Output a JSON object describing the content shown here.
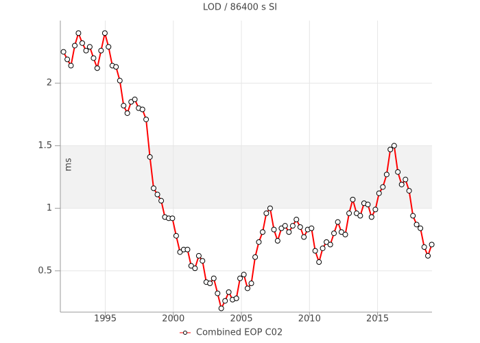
{
  "chart_data": {
    "type": "line",
    "title": "LOD / 86400 s SI",
    "y_label": "ms",
    "x": [
      1991.93,
      1992.21,
      1992.48,
      1992.76,
      1993.03,
      1993.31,
      1993.59,
      1993.86,
      1994.14,
      1994.41,
      1994.69,
      1994.97,
      1995.24,
      1995.52,
      1995.79,
      1996.07,
      1996.35,
      1996.62,
      1996.9,
      1997.17,
      1997.45,
      1997.73,
      1998.0,
      1998.28,
      1998.55,
      1998.83,
      1999.11,
      1999.38,
      1999.66,
      1999.93,
      2000.21,
      2000.49,
      2000.76,
      2001.04,
      2001.31,
      2001.59,
      2001.87,
      2002.14,
      2002.42,
      2002.69,
      2002.97,
      2003.25,
      2003.52,
      2003.8,
      2004.07,
      2004.35,
      2004.63,
      2004.9,
      2005.18,
      2005.45,
      2005.73,
      2006.01,
      2006.28,
      2006.56,
      2006.83,
      2007.11,
      2007.39,
      2007.66,
      2007.94,
      2008.21,
      2008.49,
      2008.77,
      2009.04,
      2009.32,
      2009.59,
      2009.87,
      2010.15,
      2010.42,
      2010.7,
      2010.97,
      2011.25,
      2011.53,
      2011.8,
      2012.08,
      2012.35,
      2012.63,
      2012.91,
      2013.18,
      2013.46,
      2013.73,
      2014.01,
      2014.29,
      2014.56,
      2014.84,
      2015.11,
      2015.39,
      2015.67,
      2015.94,
      2016.22,
      2016.49,
      2016.77,
      2017.05,
      2017.32,
      2017.6,
      2017.87,
      2018.15,
      2018.43,
      2018.7,
      2018.98
    ],
    "series": [
      {
        "name": "Combined EOP C02",
        "color": "#ff0000",
        "values": [
          2.25,
          2.19,
          2.14,
          2.3,
          2.4,
          2.32,
          2.26,
          2.29,
          2.2,
          2.12,
          2.26,
          2.4,
          2.29,
          2.14,
          2.13,
          2.02,
          1.82,
          1.76,
          1.85,
          1.87,
          1.8,
          1.79,
          1.71,
          1.41,
          1.16,
          1.11,
          1.06,
          0.93,
          0.92,
          0.92,
          0.78,
          0.65,
          0.67,
          0.67,
          0.54,
          0.52,
          0.62,
          0.58,
          0.41,
          0.4,
          0.44,
          0.32,
          0.2,
          0.26,
          0.33,
          0.27,
          0.28,
          0.44,
          0.47,
          0.36,
          0.4,
          0.61,
          0.73,
          0.81,
          0.96,
          1.0,
          0.83,
          0.74,
          0.84,
          0.86,
          0.81,
          0.86,
          0.91,
          0.85,
          0.77,
          0.83,
          0.84,
          0.66,
          0.57,
          0.68,
          0.73,
          0.71,
          0.8,
          0.89,
          0.81,
          0.79,
          0.96,
          1.07,
          0.96,
          0.94,
          1.04,
          1.03,
          0.93,
          0.99,
          1.12,
          1.17,
          1.27,
          1.47,
          1.5,
          1.29,
          1.19,
          1.23,
          1.14,
          0.94,
          0.87,
          0.84,
          0.69,
          0.62,
          0.71
        ]
      }
    ],
    "xlim": [
      1991.7,
      2019.0
    ],
    "ylim": [
      0.17,
      2.5
    ],
    "xticks": [
      1995,
      2000,
      2005,
      2010,
      2015
    ],
    "yticks": [
      0.5,
      1,
      1.5,
      2
    ],
    "grid": true,
    "legend": "bottom"
  }
}
